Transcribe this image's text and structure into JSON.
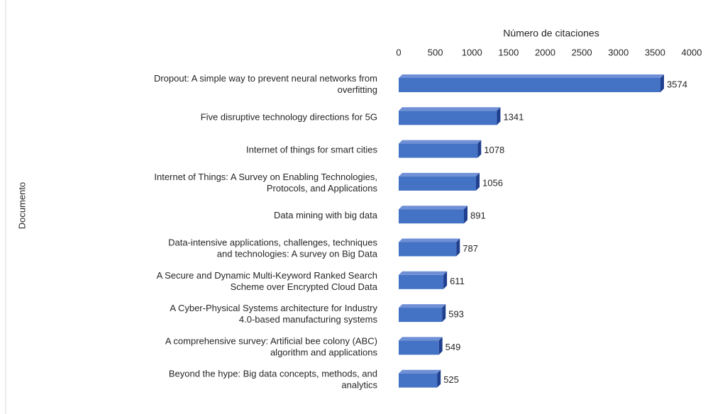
{
  "chart_data": {
    "type": "bar",
    "orientation": "horizontal",
    "x_label": "Número de citaciones",
    "y_label": "Documento",
    "categories": [
      [
        "Dropout: A simple way to prevent neural networks from",
        "overfitting"
      ],
      [
        "Five disruptive technology directions for 5G"
      ],
      [
        "Internet of things for smart cities"
      ],
      [
        "Internet of Things: A Survey on Enabling Technologies,",
        "Protocols, and Applications"
      ],
      [
        "Data mining with big data"
      ],
      [
        "Data-intensive applications, challenges, techniques",
        "and technologies: A survey on Big Data"
      ],
      [
        "A Secure and Dynamic Multi-Keyword Ranked Search",
        "Scheme over Encrypted Cloud Data"
      ],
      [
        "A Cyber-Physical Systems architecture for Industry",
        "4.0-based manufacturing systems"
      ],
      [
        "A comprehensive survey: Artificial bee colony (ABC)",
        "algorithm and applications"
      ],
      [
        "Beyond the hype: Big data concepts, methods, and",
        "analytics"
      ]
    ],
    "values": [
      3574,
      1341,
      1078,
      1056,
      891,
      787,
      611,
      593,
      549,
      525
    ],
    "color": "#4472c4",
    "xlim": [
      0,
      4000
    ],
    "xticks": [
      0,
      500,
      1000,
      1500,
      2000,
      2500,
      3000,
      3500,
      4000
    ],
    "axis_position": "top",
    "grid": false
  }
}
